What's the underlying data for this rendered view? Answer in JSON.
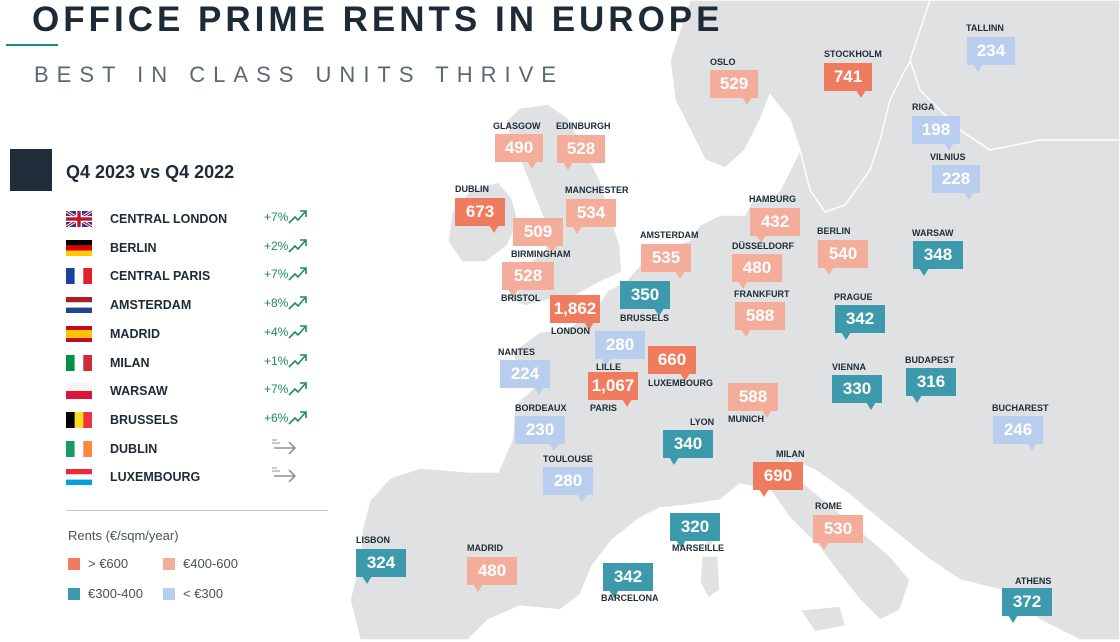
{
  "header": {
    "title": "OFFICE PRIME RENTS IN EUROPE",
    "subtitle": "BEST IN CLASS UNITS THRIVE"
  },
  "panel": {
    "heading": "Q4 2023 vs Q4 2022",
    "cities": [
      {
        "name": "CENTRAL LONDON",
        "change": "+7%",
        "flag": "uk",
        "trend": "up"
      },
      {
        "name": "BERLIN",
        "change": "+2%",
        "flag": "de",
        "trend": "up"
      },
      {
        "name": "CENTRAL PARIS",
        "change": "+7%",
        "flag": "fr",
        "trend": "up"
      },
      {
        "name": "AMSTERDAM",
        "change": "+8%",
        "flag": "nl",
        "trend": "up"
      },
      {
        "name": "MADRID",
        "change": "+4%",
        "flag": "es",
        "trend": "up"
      },
      {
        "name": "MILAN",
        "change": "+1%",
        "flag": "it",
        "trend": "up"
      },
      {
        "name": "WARSAW",
        "change": "+7%",
        "flag": "pl",
        "trend": "up"
      },
      {
        "name": "BRUSSELS",
        "change": "+6%",
        "flag": "be",
        "trend": "up"
      },
      {
        "name": "DUBLIN",
        "change": "",
        "flag": "ie",
        "trend": "stable"
      },
      {
        "name": "LUXEMBOURG",
        "change": "",
        "flag": "lu",
        "trend": "stable"
      }
    ]
  },
  "legend": {
    "title": "Rents (€/sqm/year)",
    "items": [
      {
        "label": "> €600",
        "color": "#ef7c5e"
      },
      {
        "label": "€400-600",
        "color": "#f4ad9b"
      },
      {
        "label": "€300-400",
        "color": "#3d9aad"
      },
      {
        "label": "< €300",
        "color": "#b9cdee"
      }
    ]
  },
  "colors": {
    "gt600": "#ef7c5e",
    "r400_600": "#f4ad9b",
    "r300_400": "#3d9aad",
    "lt300": "#b9cdee"
  },
  "markers": [
    {
      "city": "OSLO",
      "value": "529",
      "band": "r400_600"
    },
    {
      "city": "STOCKHOLM",
      "value": "741",
      "band": "gt600"
    },
    {
      "city": "TALLINN",
      "value": "234",
      "band": "lt300"
    },
    {
      "city": "RIGA",
      "value": "198",
      "band": "lt300"
    },
    {
      "city": "VILNIUS",
      "value": "228",
      "band": "lt300"
    },
    {
      "city": "GLASGOW",
      "value": "490",
      "band": "r400_600"
    },
    {
      "city": "EDINBURGH",
      "value": "528",
      "band": "r400_600"
    },
    {
      "city": "MANCHESTER",
      "value": "534",
      "band": "r400_600"
    },
    {
      "city": "DUBLIN",
      "value": "673",
      "band": "gt600"
    },
    {
      "city": "BIRMINGHAM",
      "value": "509",
      "band": "r400_600"
    },
    {
      "city": "BRISTOL",
      "value": "528",
      "band": "r400_600"
    },
    {
      "city": "LONDON",
      "value": "1,862",
      "band": "gt600"
    },
    {
      "city": "AMSTERDAM",
      "value": "535",
      "band": "r400_600"
    },
    {
      "city": "HAMBURG",
      "value": "432",
      "band": "r400_600"
    },
    {
      "city": "DÜSSELDORF",
      "value": "480",
      "band": "r400_600"
    },
    {
      "city": "BERLIN",
      "value": "540",
      "band": "r400_600"
    },
    {
      "city": "WARSAW",
      "value": "348",
      "band": "r300_400"
    },
    {
      "city": "BRUSSELS",
      "value": "350",
      "band": "r300_400"
    },
    {
      "city": "FRANKFURT",
      "value": "588",
      "band": "r400_600"
    },
    {
      "city": "PRAGUE",
      "value": "342",
      "band": "r300_400"
    },
    {
      "city": "LILLE",
      "value": "280",
      "band": "lt300"
    },
    {
      "city": "LUXEMBOURG",
      "value": "660",
      "band": "gt600"
    },
    {
      "city": "NANTES",
      "value": "224",
      "band": "lt300"
    },
    {
      "city": "PARIS",
      "value": "1,067",
      "band": "gt600"
    },
    {
      "city": "VIENNA",
      "value": "330",
      "band": "r300_400"
    },
    {
      "city": "BUDAPEST",
      "value": "316",
      "band": "r300_400"
    },
    {
      "city": "MUNICH",
      "value": "588",
      "band": "r400_600"
    },
    {
      "city": "BORDEAUX",
      "value": "230",
      "band": "lt300"
    },
    {
      "city": "LYON",
      "value": "340",
      "band": "r300_400"
    },
    {
      "city": "BUCHAREST",
      "value": "246",
      "band": "lt300"
    },
    {
      "city": "TOULOUSE",
      "value": "280",
      "band": "lt300"
    },
    {
      "city": "MILAN",
      "value": "690",
      "band": "gt600"
    },
    {
      "city": "MARSEILLE",
      "value": "320",
      "band": "r300_400"
    },
    {
      "city": "ROME",
      "value": "530",
      "band": "r400_600"
    },
    {
      "city": "LISBON",
      "value": "324",
      "band": "r300_400"
    },
    {
      "city": "MADRID",
      "value": "480",
      "band": "r400_600"
    },
    {
      "city": "BARCELONA",
      "value": "342",
      "band": "r300_400"
    },
    {
      "city": "ATHENS",
      "value": "372",
      "band": "r300_400"
    }
  ]
}
